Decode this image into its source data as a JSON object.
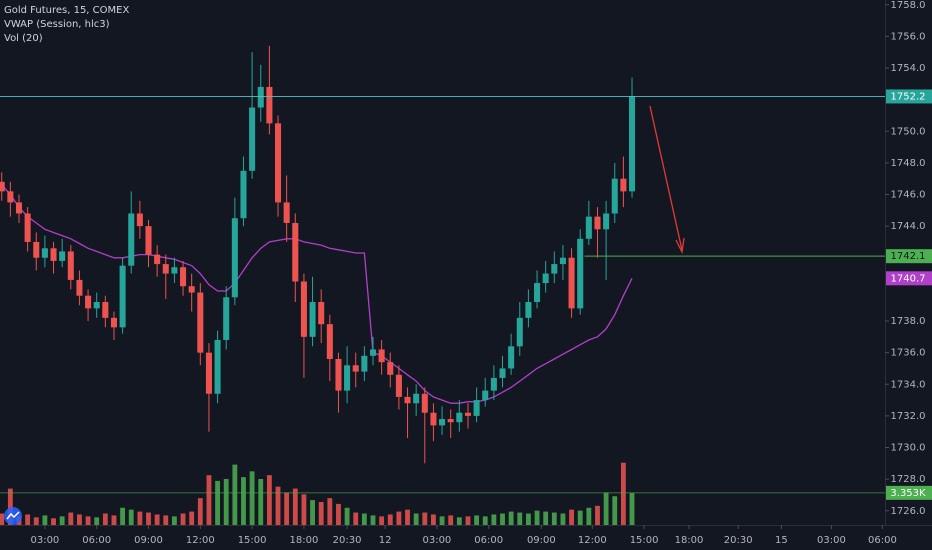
{
  "chart_data": {
    "type": "candlestick",
    "legend": [
      "Gold Futures, 15, COMEX",
      "VWAP (Session, hlc3)",
      "Vol (20)"
    ],
    "xlim": [
      -0.2,
      102.3
    ],
    "xticks": [
      {
        "value": 5,
        "label": "03:00"
      },
      {
        "value": 11,
        "label": "06:00"
      },
      {
        "value": 17,
        "label": "09:00"
      },
      {
        "value": 23,
        "label": "12:00"
      },
      {
        "value": 29,
        "label": "15:00"
      },
      {
        "value": 35,
        "label": "18:00"
      },
      {
        "value": 40,
        "label": "20:30"
      },
      {
        "value": 44.4,
        "label": "12"
      },
      {
        "value": 50.4,
        "label": "03:00"
      },
      {
        "value": 56.4,
        "label": "06:00"
      },
      {
        "value": 62.5,
        "label": "09:00"
      },
      {
        "value": 68.4,
        "label": "12:00"
      },
      {
        "value": 74.4,
        "label": "15:00"
      },
      {
        "value": 79.6,
        "label": "18:00"
      },
      {
        "value": 85.3,
        "label": "20:30"
      },
      {
        "value": 90.3,
        "label": "15"
      },
      {
        "value": 96.1,
        "label": "03:00"
      },
      {
        "value": 102,
        "label": "06:00"
      }
    ],
    "ylim": [
      1725.1,
      1758.3
    ],
    "yticks": [
      {
        "value": 1726,
        "label": "1726.0"
      },
      {
        "value": 1728,
        "label": "1728.0"
      },
      {
        "value": 1730,
        "label": "1730.0"
      },
      {
        "value": 1732,
        "label": "1732.0"
      },
      {
        "value": 1734,
        "label": "1734.0"
      },
      {
        "value": 1736,
        "label": "1736.0"
      },
      {
        "value": 1738,
        "label": "1738.0"
      },
      {
        "value": 1744,
        "label": "1744.0"
      },
      {
        "value": 1746,
        "label": "1746.0"
      },
      {
        "value": 1748,
        "label": "1748.0"
      },
      {
        "value": 1750,
        "label": "1750.0"
      },
      {
        "value": 1754,
        "label": "1754.0"
      },
      {
        "value": 1756,
        "label": "1756.0"
      },
      {
        "value": 1758,
        "label": "1758.0"
      }
    ],
    "grid": false,
    "up_color": "#26a69a",
    "down_color": "#ef5350",
    "volume_up_color": "#4caf50",
    "volume_down_color": "#ef5350",
    "vwap_color": "#b03fc9",
    "open": [
      1746.8,
      1746.2,
      1745.5,
      1744.8,
      1743.0,
      1742.0,
      1742.6,
      1741.8,
      1742.4,
      1740.6,
      1739.6,
      1738.8,
      1739.2,
      1738.2,
      1737.6,
      1741.5,
      1744.8,
      1744.0,
      1742.2,
      1741.6,
      1741.0,
      1741.4,
      1740.2,
      1739.8,
      1736.0,
      1733.4,
      1736.8,
      1739.5,
      1744.5,
      1747.5,
      1751.5,
      1752.8,
      1750.5,
      1745.5,
      1744.2,
      1740.5,
      1737.0,
      1739.2,
      1737.8,
      1735.6,
      1733.6,
      1735.2,
      1734.8,
      1735.8,
      1736.2,
      1735.4,
      1734.6,
      1733.2,
      1732.8,
      1733.4,
      1732.2,
      1731.4,
      1731.8,
      1731.6,
      1732.2,
      1732.0,
      1733.0,
      1733.6,
      1734.4,
      1735.0,
      1736.4,
      1738.2,
      1739.2,
      1740.4,
      1741.0,
      1741.6,
      1742.0,
      1738.8,
      1743.2,
      1744.6,
      1743.8,
      1744.8,
      1747.0,
      1746.2
    ],
    "high": [
      1747.4,
      1746.8,
      1746.0,
      1745.2,
      1743.6,
      1743.4,
      1743.0,
      1743.2,
      1742.8,
      1741.2,
      1740.0,
      1739.8,
      1739.6,
      1738.6,
      1742.0,
      1746.2,
      1745.6,
      1744.4,
      1742.8,
      1742.2,
      1742.0,
      1741.8,
      1741.0,
      1740.4,
      1736.6,
      1737.4,
      1740.2,
      1745.8,
      1748.4,
      1755.0,
      1754.2,
      1755.4,
      1751.0,
      1747.2,
      1744.8,
      1741.0,
      1740.8,
      1740.0,
      1738.4,
      1736.0,
      1736.4,
      1736.0,
      1736.4,
      1737.0,
      1736.8,
      1736.0,
      1735.2,
      1733.8,
      1734.0,
      1733.8,
      1732.8,
      1732.6,
      1732.4,
      1733.0,
      1732.8,
      1733.8,
      1734.4,
      1735.2,
      1735.8,
      1737.2,
      1739.2,
      1740.0,
      1741.2,
      1741.8,
      1742.4,
      1742.8,
      1742.6,
      1743.8,
      1745.6,
      1745.2,
      1745.6,
      1748.0,
      1748.4,
      1753.4
    ],
    "low": [
      1745.6,
      1744.6,
      1744.2,
      1742.4,
      1741.2,
      1741.4,
      1741.0,
      1741.4,
      1740.0,
      1739.0,
      1738.0,
      1738.2,
      1737.6,
      1736.8,
      1737.2,
      1741.0,
      1743.2,
      1741.4,
      1740.8,
      1739.4,
      1740.4,
      1739.6,
      1738.6,
      1735.2,
      1731.0,
      1732.8,
      1736.2,
      1739.0,
      1744.0,
      1747.0,
      1750.6,
      1749.8,
      1744.6,
      1743.0,
      1739.2,
      1734.4,
      1736.4,
      1736.6,
      1734.2,
      1732.2,
      1732.8,
      1733.8,
      1734.2,
      1735.2,
      1734.6,
      1733.8,
      1732.4,
      1730.6,
      1732.0,
      1729.0,
      1730.4,
      1730.8,
      1730.6,
      1731.0,
      1731.2,
      1731.6,
      1732.6,
      1733.0,
      1733.8,
      1734.6,
      1735.8,
      1737.6,
      1738.8,
      1739.8,
      1740.4,
      1740.6,
      1738.2,
      1738.4,
      1742.8,
      1742.0,
      1740.6,
      1744.2,
      1745.2,
      1745.8
    ],
    "close": [
      1746.2,
      1745.5,
      1744.8,
      1743.0,
      1742.0,
      1742.6,
      1741.8,
      1742.4,
      1740.6,
      1739.6,
      1738.8,
      1739.2,
      1738.2,
      1737.6,
      1741.5,
      1744.8,
      1744.0,
      1742.2,
      1741.6,
      1741.0,
      1741.4,
      1740.2,
      1739.8,
      1736.0,
      1733.4,
      1736.8,
      1739.5,
      1744.5,
      1747.5,
      1751.5,
      1752.8,
      1750.5,
      1745.5,
      1744.2,
      1740.5,
      1737.0,
      1739.2,
      1737.8,
      1735.6,
      1733.6,
      1735.2,
      1734.8,
      1735.8,
      1736.2,
      1735.4,
      1734.6,
      1733.2,
      1732.8,
      1733.4,
      1732.2,
      1731.4,
      1731.8,
      1731.6,
      1732.2,
      1732.0,
      1733.0,
      1733.6,
      1734.4,
      1735.0,
      1736.4,
      1738.2,
      1739.2,
      1740.4,
      1741.0,
      1741.6,
      1742.0,
      1738.8,
      1743.2,
      1744.6,
      1743.8,
      1744.8,
      1747.0,
      1746.2,
      1752.2
    ],
    "volume": [
      1200,
      3800,
      900,
      1100,
      800,
      1000,
      700,
      900,
      1300,
      1100,
      900,
      800,
      1200,
      1000,
      1800,
      1600,
      1400,
      1300,
      1100,
      1000,
      900,
      1200,
      1400,
      2800,
      5200,
      4600,
      4800,
      6300,
      5000,
      5600,
      4800,
      5200,
      4000,
      3400,
      3800,
      3200,
      2600,
      2400,
      2800,
      2200,
      1800,
      1300,
      1200,
      1000,
      900,
      1100,
      1400,
      1600,
      1200,
      1300,
      1100,
      900,
      1000,
      800,
      900,
      1000,
      900,
      1100,
      1200,
      1400,
      1300,
      1200,
      1500,
      1400,
      1300,
      1200,
      1600,
      1500,
      1800,
      2000,
      3400,
      3000,
      6500,
      3353
    ],
    "volume_lim": [
      0,
      12000
    ],
    "volume_marker": {
      "value": 3353,
      "label": "3.353K"
    },
    "vwap": [
      1746.6,
      1746.0,
      1745.2,
      1744.6,
      1744.2,
      1743.8,
      1743.6,
      1743.4,
      1743.2,
      1742.9,
      1742.6,
      1742.4,
      1742.2,
      1742.0,
      1742.0,
      1742.1,
      1742.2,
      1742.2,
      1742.1,
      1742.0,
      1741.9,
      1741.7,
      1741.5,
      1741.0,
      1740.3,
      1739.9,
      1739.9,
      1740.4,
      1741.2,
      1742.0,
      1742.6,
      1743.0,
      1743.1,
      1743.2,
      1743.2,
      1743.0,
      1742.9,
      1742.8,
      1742.6,
      1742.5,
      1742.4,
      1742.3,
      1742.3,
      1736.0,
      1735.8,
      1735.4,
      1735.0,
      1734.6,
      1734.2,
      1733.6,
      1733.2,
      1733.0,
      1732.8,
      1732.8,
      1732.9,
      1732.9,
      1733.0,
      1733.2,
      1733.5,
      1733.8,
      1734.2,
      1734.6,
      1735.0,
      1735.3,
      1735.6,
      1735.9,
      1736.2,
      1736.5,
      1736.8,
      1737.0,
      1737.5,
      1738.4,
      1739.6,
      1740.7
    ],
    "horizontal_line": 1742.1,
    "horizontal_line_color": "#4caf50",
    "last_price_color": "#4fc3c3"
  }
}
